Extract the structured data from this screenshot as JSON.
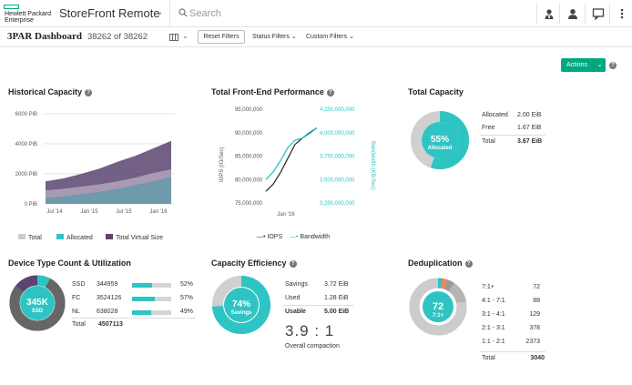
{
  "brand": {
    "line1": "Hewlett Packard",
    "line2": "Enterprise"
  },
  "app": {
    "title": "StoreFront Remote"
  },
  "search": {
    "placeholder": "Search"
  },
  "dashboard": {
    "title": "3PAR Dashboard",
    "count": "38262 of 38262",
    "reset_label": "Reset Filters",
    "status_filters": "Status Filters",
    "custom_filters": "Custom Filters",
    "actions_label": "Actions"
  },
  "historical": {
    "title": "Historical Capacity",
    "legend": [
      "Total",
      "Allocated",
      "Total Virtual Size"
    ]
  },
  "frontend": {
    "title": "Total Front-End Performance",
    "legend": [
      "IOPS",
      "Bandwidth"
    ]
  },
  "total_capacity": {
    "title": "Total Capacity",
    "percent": "55%",
    "percent_label": "Allocated",
    "fraction": 0.55,
    "rows": [
      {
        "label": "Allocated",
        "value": "2.00 EiB"
      },
      {
        "label": "Free",
        "value": "1.67 EiB"
      },
      {
        "label": "Total",
        "value": "3.67 EiB"
      }
    ]
  },
  "device": {
    "title": "Device Type Count & Utilization",
    "center_value": "345K",
    "center_label": "SSD",
    "rows": [
      {
        "type": "SSD",
        "count": "344959",
        "pct": "52%",
        "fill": 0.52
      },
      {
        "type": "FC",
        "count": "3524126",
        "pct": "57%",
        "fill": 0.57
      },
      {
        "type": "NL",
        "count": "638028",
        "pct": "49%",
        "fill": 0.49
      }
    ],
    "total_label": "Total",
    "total_value": "4507113",
    "slices": [
      0.077,
      0.782,
      0.141
    ]
  },
  "efficiency": {
    "title": "Capacity Efficiency",
    "percent": "74%",
    "percent_label": "Savings",
    "fraction": 0.74,
    "rows": [
      {
        "label": "Savings",
        "value": "3.72 EiB"
      },
      {
        "label": "Used",
        "value": "1.28 EiB"
      },
      {
        "label": "Usable",
        "value": "5.00 EiB"
      }
    ],
    "ratio": "3.9 : 1",
    "ratio_label": "Overall compaction"
  },
  "dedup": {
    "title": "Deduplication",
    "center_value": "72",
    "center_label": "7:1+",
    "rows": [
      {
        "label": "7:1+",
        "value": "72"
      },
      {
        "label": "4:1 - 7:1",
        "value": "88"
      },
      {
        "label": "3:1 - 4:1",
        "value": "129"
      },
      {
        "label": "2:1 - 3:1",
        "value": "378"
      },
      {
        "label": "1:1 - 2:1",
        "value": "2373"
      }
    ],
    "total_label": "Total",
    "total_value": "3040"
  },
  "colors": {
    "teal": "#2ec4c4",
    "purple": "#5b4470",
    "dark_gray": "#666666",
    "light_gray": "#cccccc",
    "orange": "#f0855c",
    "hpe_green": "#01a982"
  },
  "chart_data": [
    {
      "type": "area",
      "title": "Historical Capacity",
      "yticks": [
        "6000 PiB",
        "4000 PiB",
        "2000 PiB",
        "0 PiB"
      ],
      "xticks": [
        "Jul '14",
        "Jan '15",
        "Jul '15",
        "Jan '16"
      ],
      "ylim": [
        0,
        6000
      ],
      "series": [
        {
          "name": "Total Virtual Size",
          "values": [
            1500,
            1700,
            2000,
            2350,
            2800,
            3200,
            3700,
            4200
          ]
        },
        {
          "name": "Total",
          "values": [
            900,
            1000,
            1150,
            1300,
            1500,
            1750,
            2050,
            2300
          ]
        },
        {
          "name": "Allocated",
          "values": [
            400,
            500,
            650,
            800,
            1000,
            1250,
            1500,
            1800
          ]
        }
      ]
    },
    {
      "type": "line",
      "title": "Total Front-End Performance",
      "ylabel": "IOPS (IO/Sec)",
      "y2label": "Bandwidth (KB/Sec)",
      "yticks": [
        "95,000,000",
        "90,000,000",
        "85,000,000",
        "80,000,000",
        "75,000,000"
      ],
      "y2ticks": [
        "4,250,000,000",
        "4,000,000,000",
        "3,750,000,000",
        "3,500,000,000",
        "3,250,000,000"
      ],
      "xticks": [
        "Jan '16"
      ],
      "ylim": [
        75000000,
        95000000
      ],
      "y2lim": [
        3250000000,
        4250000000
      ],
      "series": [
        {
          "name": "IOPS",
          "values": [
            77500000,
            79000000,
            81500000,
            84500000,
            87500000,
            88800000,
            90000000,
            91000000
          ]
        },
        {
          "name": "Bandwidth",
          "values": [
            3500000000,
            3580000000,
            3700000000,
            3840000000,
            3920000000,
            3940000000,
            3990000000,
            4050000000
          ]
        }
      ]
    }
  ]
}
